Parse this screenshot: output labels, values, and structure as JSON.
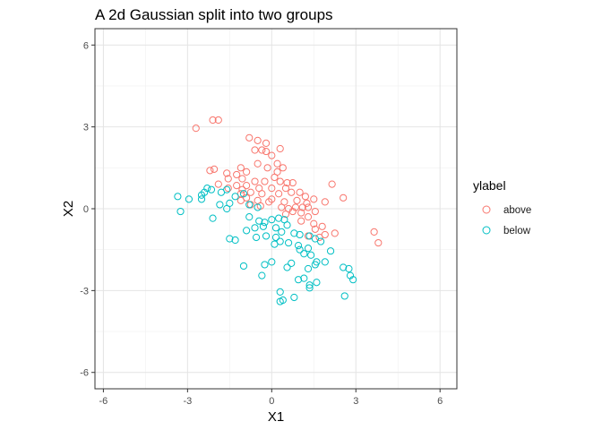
{
  "chart_data": {
    "type": "scatter",
    "title": "A 2d Gaussian split into two groups",
    "xlabel": "X1",
    "ylabel": "X2",
    "xlim": [
      -6.3,
      6.6
    ],
    "ylim": [
      -6.6,
      6.6
    ],
    "x_ticks": [
      -6,
      -3,
      0,
      3,
      6
    ],
    "y_ticks": [
      -6,
      -3,
      0,
      3,
      6
    ],
    "x_tick_labels": [
      "-6",
      "-3",
      "0",
      "3",
      "6"
    ],
    "y_tick_labels": [
      "-6",
      "-3",
      "0",
      "3",
      "6"
    ],
    "grid": true,
    "legend": {
      "title": "ylabel",
      "placement": "right"
    },
    "series": [
      {
        "name": "above",
        "color": "#F8766D",
        "points": [
          [
            -2.7,
            2.95
          ],
          [
            -2.1,
            3.25
          ],
          [
            -1.9,
            3.25
          ],
          [
            -0.8,
            2.6
          ],
          [
            -0.5,
            2.5
          ],
          [
            -0.2,
            2.4
          ],
          [
            -0.6,
            2.15
          ],
          [
            -0.35,
            2.15
          ],
          [
            -0.2,
            2.1
          ],
          [
            0.3,
            2.2
          ],
          [
            0.0,
            1.95
          ],
          [
            -0.5,
            1.65
          ],
          [
            -0.15,
            1.5
          ],
          [
            0.2,
            1.65
          ],
          [
            0.4,
            1.5
          ],
          [
            0.2,
            1.35
          ],
          [
            0.3,
            1.0
          ],
          [
            0.1,
            1.15
          ],
          [
            -1.1,
            1.5
          ],
          [
            -0.9,
            1.35
          ],
          [
            -1.6,
            1.3
          ],
          [
            -2.2,
            1.4
          ],
          [
            -2.05,
            1.45
          ],
          [
            -1.25,
            1.25
          ],
          [
            -1.55,
            1.1
          ],
          [
            -1.05,
            1.1
          ],
          [
            -0.6,
            1.0
          ],
          [
            -0.25,
            1.0
          ],
          [
            0.55,
            0.95
          ],
          [
            0.75,
            0.95
          ],
          [
            -1.9,
            0.9
          ],
          [
            -1.25,
            0.85
          ],
          [
            -0.9,
            0.85
          ],
          [
            -0.45,
            0.75
          ],
          [
            0.0,
            0.75
          ],
          [
            0.5,
            0.75
          ],
          [
            -1.55,
            0.75
          ],
          [
            -1.05,
            0.7
          ],
          [
            -0.75,
            0.6
          ],
          [
            -0.35,
            0.55
          ],
          [
            0.25,
            0.55
          ],
          [
            0.7,
            0.6
          ],
          [
            1.0,
            0.6
          ],
          [
            -1.1,
            0.55
          ],
          [
            -0.9,
            0.4
          ],
          [
            -0.5,
            0.3
          ],
          [
            0.0,
            0.35
          ],
          [
            0.45,
            0.25
          ],
          [
            1.2,
            0.45
          ],
          [
            1.25,
            0.2
          ],
          [
            1.5,
            0.35
          ],
          [
            1.9,
            0.25
          ],
          [
            2.15,
            0.9
          ],
          [
            2.55,
            0.4
          ],
          [
            -1.1,
            0.3
          ],
          [
            -0.75,
            0.15
          ],
          [
            -0.4,
            0.1
          ],
          [
            0.35,
            0.05
          ],
          [
            0.6,
            0.0
          ],
          [
            0.85,
            0.05
          ],
          [
            1.1,
            0.05
          ],
          [
            1.3,
            0.05
          ],
          [
            0.5,
            -0.2
          ],
          [
            0.75,
            -0.1
          ],
          [
            1.05,
            -0.15
          ],
          [
            1.3,
            -0.3
          ],
          [
            1.55,
            -0.1
          ],
          [
            1.05,
            -0.45
          ],
          [
            1.5,
            -0.55
          ],
          [
            1.8,
            -0.65
          ],
          [
            1.55,
            -0.75
          ],
          [
            1.9,
            -0.95
          ],
          [
            1.7,
            -1.05
          ],
          [
            1.3,
            -1.0
          ],
          [
            2.25,
            -0.9
          ],
          [
            3.65,
            -0.85
          ],
          [
            3.8,
            -1.25
          ],
          [
            0.9,
            0.3
          ],
          [
            -0.1,
            0.25
          ]
        ]
      },
      {
        "name": "below",
        "color": "#00BFC4",
        "points": [
          [
            -3.35,
            0.45
          ],
          [
            -2.95,
            0.35
          ],
          [
            -3.25,
            -0.1
          ],
          [
            -2.5,
            0.5
          ],
          [
            -2.5,
            0.35
          ],
          [
            -2.4,
            0.6
          ],
          [
            -2.3,
            0.75
          ],
          [
            -2.15,
            0.7
          ],
          [
            -1.8,
            0.6
          ],
          [
            -1.6,
            0.7
          ],
          [
            -1.3,
            0.45
          ],
          [
            -1.0,
            0.55
          ],
          [
            -1.85,
            0.15
          ],
          [
            -1.6,
            0.0
          ],
          [
            -1.5,
            0.2
          ],
          [
            -0.8,
            0.15
          ],
          [
            -0.5,
            0.05
          ],
          [
            -2.1,
            -0.35
          ],
          [
            -0.8,
            -0.3
          ],
          [
            -0.45,
            -0.45
          ],
          [
            -0.25,
            -0.5
          ],
          [
            0.0,
            -0.4
          ],
          [
            0.25,
            -0.35
          ],
          [
            0.45,
            -0.4
          ],
          [
            -0.6,
            -0.7
          ],
          [
            -0.3,
            -0.65
          ],
          [
            0.15,
            -0.7
          ],
          [
            0.55,
            -0.6
          ],
          [
            0.8,
            -0.9
          ],
          [
            1.0,
            -0.95
          ],
          [
            -1.5,
            -1.1
          ],
          [
            -1.3,
            -1.15
          ],
          [
            -0.55,
            -1.05
          ],
          [
            -0.2,
            -1.0
          ],
          [
            0.15,
            -1.05
          ],
          [
            0.35,
            -0.85
          ],
          [
            1.35,
            -1.0
          ],
          [
            1.55,
            -1.1
          ],
          [
            0.1,
            -1.3
          ],
          [
            0.3,
            -1.2
          ],
          [
            0.6,
            -1.25
          ],
          [
            0.95,
            -1.35
          ],
          [
            1.3,
            -1.45
          ],
          [
            1.75,
            -1.2
          ],
          [
            1.15,
            -1.65
          ],
          [
            1.4,
            -1.7
          ],
          [
            1.6,
            -1.95
          ],
          [
            2.1,
            -1.55
          ],
          [
            1.9,
            -1.95
          ],
          [
            2.55,
            -2.15
          ],
          [
            2.75,
            -2.2
          ],
          [
            1.3,
            -2.2
          ],
          [
            1.55,
            -2.05
          ],
          [
            0.7,
            -2.0
          ],
          [
            0.55,
            -2.15
          ],
          [
            0.0,
            -1.95
          ],
          [
            -0.25,
            -2.05
          ],
          [
            -1.0,
            -2.1
          ],
          [
            -0.35,
            -2.45
          ],
          [
            1.15,
            -2.55
          ],
          [
            0.95,
            -2.6
          ],
          [
            1.35,
            -2.8
          ],
          [
            1.6,
            -2.7
          ],
          [
            2.8,
            -2.45
          ],
          [
            2.9,
            -2.6
          ],
          [
            1.35,
            -2.9
          ],
          [
            0.3,
            -3.05
          ],
          [
            0.4,
            -3.35
          ],
          [
            0.8,
            -3.25
          ],
          [
            2.6,
            -3.2
          ],
          [
            0.3,
            -3.4
          ],
          [
            1.0,
            -1.5
          ],
          [
            -0.9,
            -0.8
          ]
        ]
      }
    ]
  }
}
